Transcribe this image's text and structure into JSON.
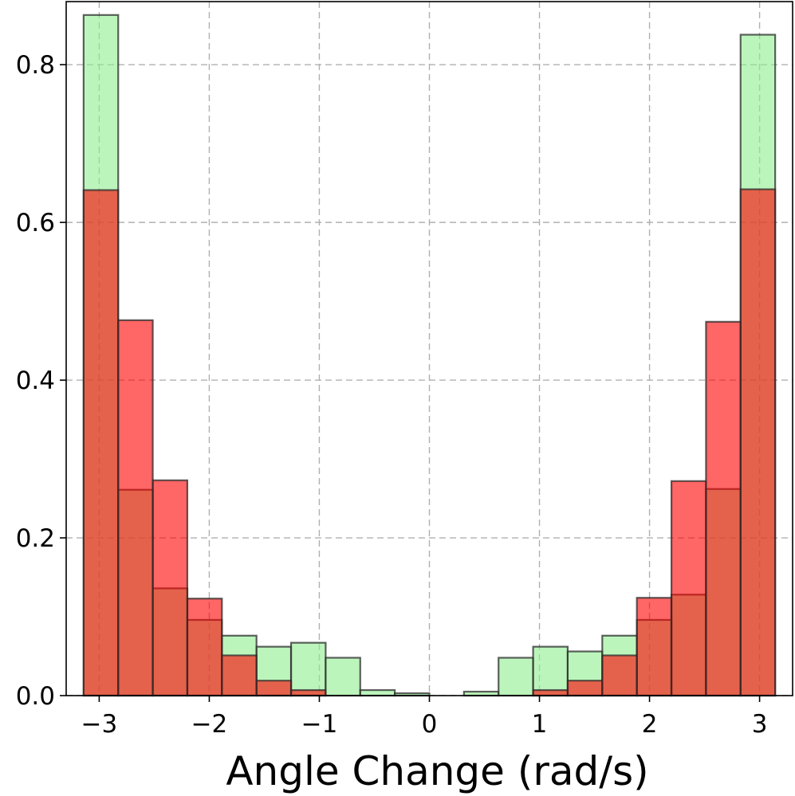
{
  "chart_data": {
    "type": "bar",
    "subtype": "overlaid-histogram",
    "title": "",
    "xlabel": "Angle Change (rad/s)",
    "ylabel": "",
    "xlim": [
      -3.3,
      3.3
    ],
    "ylim": [
      0,
      0.88
    ],
    "xticks": [
      -3,
      -2,
      -1,
      0,
      1,
      2,
      3
    ],
    "xtick_labels": [
      "−3",
      "−2",
      "−1",
      "0",
      "1",
      "2",
      "3"
    ],
    "yticks": [
      0.0,
      0.2,
      0.4,
      0.6,
      0.8
    ],
    "ytick_labels": [
      "0.0",
      "0.2",
      "0.4",
      "0.6",
      "0.8"
    ],
    "grid": true,
    "bin_edges": [
      -3.1416,
      -2.8274,
      -2.5133,
      -2.1991,
      -1.885,
      -1.5708,
      -1.2566,
      -0.9425,
      -0.6283,
      -0.3142,
      0.0,
      0.3142,
      0.6283,
      0.9425,
      1.2566,
      1.5708,
      1.885,
      2.1991,
      2.5133,
      2.8274,
      3.1416
    ],
    "series": [
      {
        "color": "#90ee90",
        "opacity": 0.6,
        "values": [
          0.863,
          0.261,
          0.136,
          0.096,
          0.076,
          0.062,
          0.067,
          0.048,
          0.007,
          0.003,
          0.0,
          0.005,
          0.048,
          0.062,
          0.056,
          0.076,
          0.096,
          0.128,
          0.262,
          0.838
        ]
      },
      {
        "color": "#ff0000",
        "opacity": 0.6,
        "values": [
          0.641,
          0.476,
          0.273,
          0.123,
          0.051,
          0.019,
          0.007,
          0.0,
          0.0,
          0.0,
          0.0,
          0.0,
          0.0,
          0.007,
          0.019,
          0.051,
          0.124,
          0.272,
          0.474,
          0.642
        ]
      }
    ],
    "legend": "none"
  }
}
